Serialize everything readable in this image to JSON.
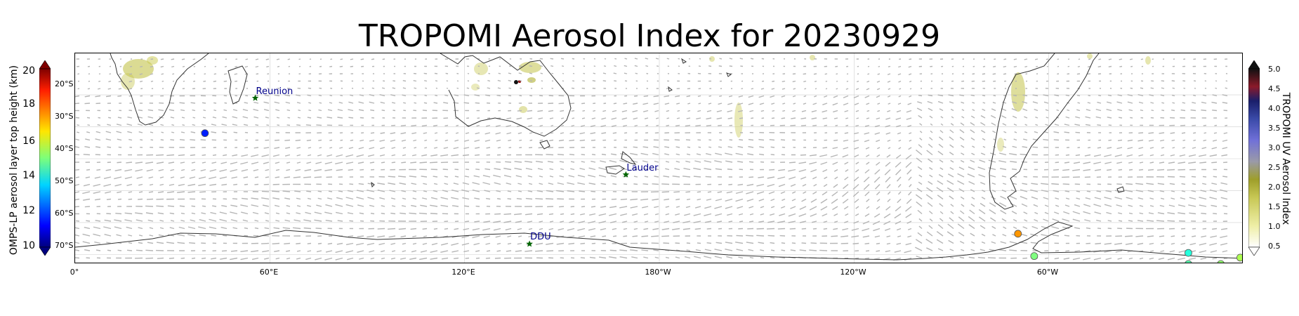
{
  "title": "TROPOMI Aerosol Index for 20230929",
  "map": {
    "extent": {
      "lon_min": 0,
      "lon_max": 360,
      "lat_min": -73,
      "lat_max": -7
    },
    "lon_ticks": [
      "0°",
      "60°E",
      "120°E",
      "180°W",
      "120°W",
      "60°W"
    ],
    "lat_ticks": [
      "20°S",
      "30°S",
      "40°S",
      "50°S",
      "60°S",
      "70°S"
    ],
    "overlays": [
      "wind-vectors",
      "coastlines",
      "gridlines",
      "aerosol-index-shading"
    ],
    "stations": [
      {
        "name": "Reunion",
        "lon": 55.5,
        "lat": -21.0
      },
      {
        "name": "Lauder",
        "lon": 169.7,
        "lat": -45.0
      },
      {
        "name": "DDU",
        "lon": 140.0,
        "lat": -66.7
      }
    ],
    "omps_points": [
      {
        "lon": 40,
        "lat": -32,
        "height_km": 11.2
      },
      {
        "lon": 290.5,
        "lat": -63.5,
        "height_km": 17.5
      },
      {
        "lon": 295.5,
        "lat": -70.5,
        "height_km": 15.0
      },
      {
        "lon": 343,
        "lat": -69.5,
        "height_km": 14.0
      },
      {
        "lon": 343,
        "lat": -73,
        "height_km": 14.5
      },
      {
        "lon": 353,
        "lat": -73,
        "height_km": 15.2
      },
      {
        "lon": 359,
        "lat": -71,
        "height_km": 15.5
      }
    ]
  },
  "left_colorbar": {
    "title": "OMPS-LP aerosol layer top height (km)",
    "ticks": [
      "10",
      "12",
      "14",
      "16",
      "18",
      "20"
    ],
    "range": [
      9.5,
      20.5
    ],
    "colormap": "jet",
    "extend": "both"
  },
  "right_colorbar": {
    "title": "TROPOMI UV Aerosol Index",
    "ticks": [
      "0.5",
      "1.0",
      "1.5",
      "2.0",
      "2.5",
      "3.0",
      "3.5",
      "4.0",
      "4.5",
      "5.0"
    ],
    "range": [
      0.5,
      5.0
    ],
    "extend": "both"
  }
}
